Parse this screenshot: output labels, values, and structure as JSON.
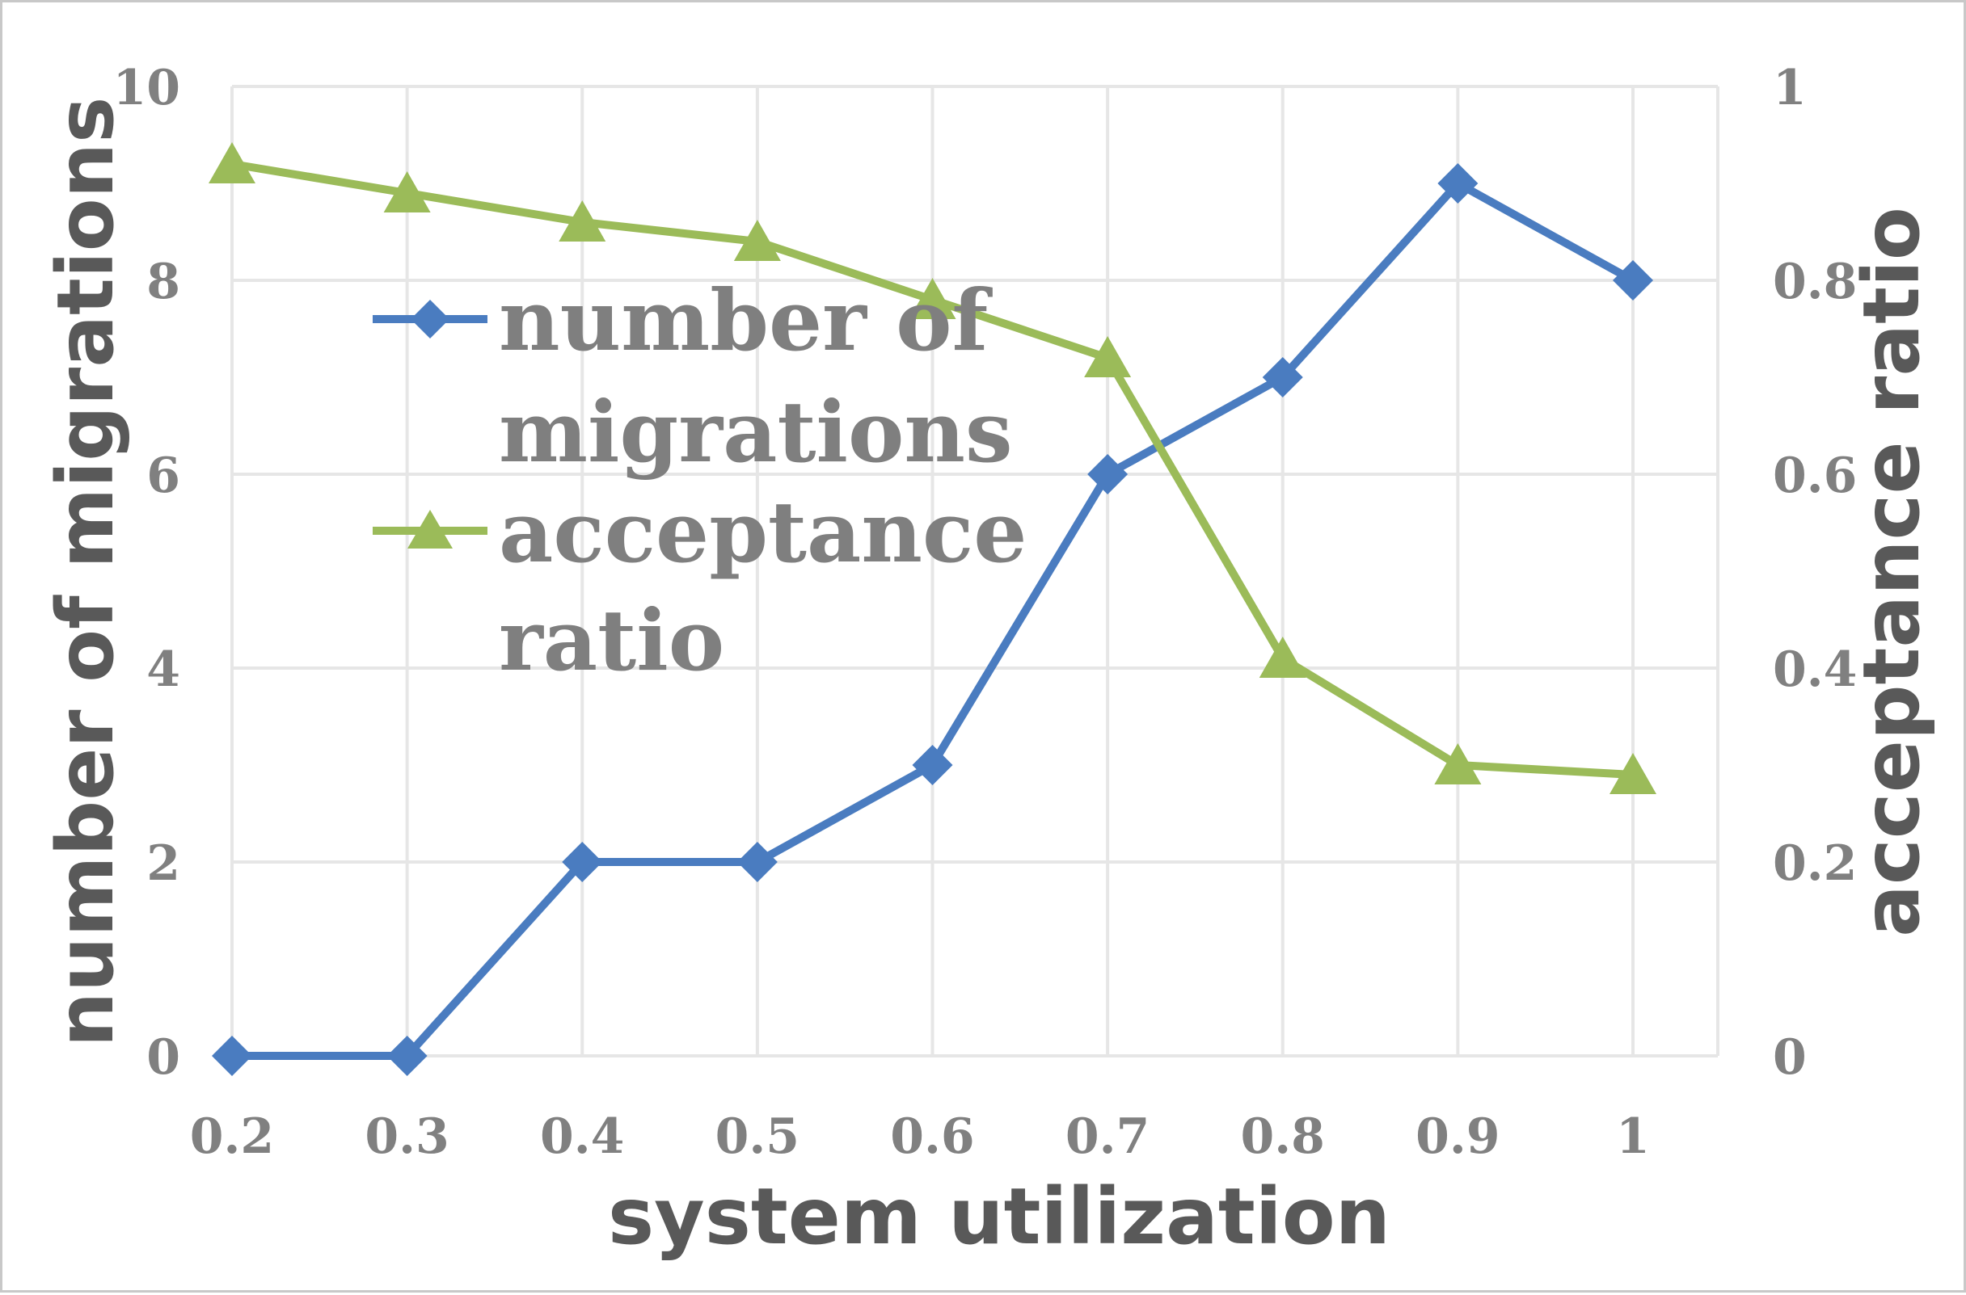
{
  "chart_data": {
    "type": "line",
    "title": "",
    "xlabel": "system utilization",
    "ylabel": "number of migrations",
    "y2label": "acceptance ratio",
    "categories": [
      "0.2",
      "0.3",
      "0.4",
      "0.5",
      "0.6",
      "0.7",
      "0.8",
      "0.9",
      "1"
    ],
    "ylim": [
      0,
      10
    ],
    "y2lim": [
      0,
      1
    ],
    "yticks": [
      "0",
      "2",
      "4",
      "6",
      "8",
      "10"
    ],
    "y2ticks": [
      "0",
      "0.2",
      "0.4",
      "0.6",
      "0.8",
      "1"
    ],
    "grid": true,
    "legend_position": "upper-left-inside",
    "series": [
      {
        "name": "number of migrations",
        "legend_lines": [
          "number of",
          "migrations"
        ],
        "axis": "left",
        "marker": "diamond",
        "color": "#4a7cc0",
        "values": [
          0,
          0,
          2,
          2,
          3,
          6,
          7,
          9,
          8
        ]
      },
      {
        "name": "acceptance ratio",
        "legend_lines": [
          "acceptance",
          "ratio"
        ],
        "axis": "right",
        "marker": "triangle",
        "color": "#9bbb59",
        "values": [
          0.92,
          0.89,
          0.86,
          0.84,
          0.78,
          0.72,
          0.41,
          0.3,
          0.29
        ]
      }
    ]
  }
}
